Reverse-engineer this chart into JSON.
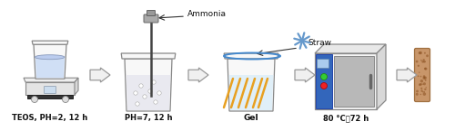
{
  "bg_color": "#ffffff",
  "fig_width": 5.0,
  "fig_height": 1.45,
  "dpi": 100,
  "labels": {
    "label1": "TEOS, PH=2, 12 h",
    "label2": "PH=7, 12 h",
    "label3": "Gel",
    "label4": "80 °C，72 h",
    "ammonia": "Ammonia",
    "straw": "Straw"
  },
  "label_fontsize": 6.0,
  "annotation_fontsize": 6.5,
  "text_color": "#111111",
  "arrow_face": "#f0f0f0",
  "arrow_edge": "#999999",
  "beaker_face": "#f8f8f8",
  "beaker_edge": "#888888",
  "liquid_color1": "#e8e8f0",
  "liquid_color2": "#e0eef8",
  "gel_liquid_color": "#deeef8",
  "straw_line_color": "#e8a020",
  "blue_rim": "#4488cc",
  "blue_straw_color": "#6699cc",
  "oven_front": "#f5f5f5",
  "oven_top": "#e8e8e8",
  "oven_right": "#d8d8d8",
  "oven_blue_panel": "#3366bb",
  "oven_door": "#b8b8b8",
  "oven_edge": "#888888",
  "straw_piece_color": "#c8966a",
  "straw_piece_edge": "#a07040",
  "scale_face": "#eeeeee",
  "scale_dark": "#333333"
}
